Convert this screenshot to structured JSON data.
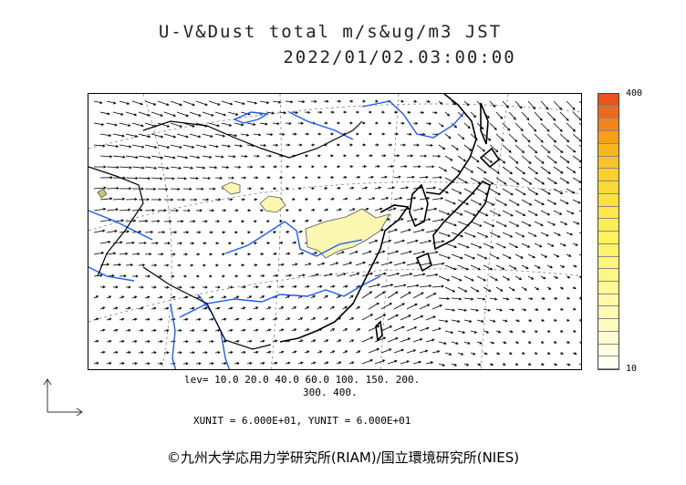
{
  "title": {
    "line1": "U-V&Dust total m/s&ug/m3 JST",
    "line2": "2022/01/02.03:00:00"
  },
  "legend": {
    "max_label": "400",
    "min_label": "10",
    "levels_line1": "lev= 10.0 20.0 40.0 60.0 100. 150. 200.",
    "levels_line2": "300. 400.",
    "units": "XUNIT = 6.000E+01, YUNIT = 6.000E+01",
    "segment_colors": [
      "#e8541c",
      "#ee6a1a",
      "#f28418",
      "#f6a016",
      "#f8b61c",
      "#fac524",
      "#fbd02e",
      "#fcd836",
      "#fce040",
      "#fde84a",
      "#fded54",
      "#fdf15e",
      "#fdf36a",
      "#fdf577",
      "#fdf686",
      "#fdf895",
      "#fef9a5",
      "#fefab4",
      "#fefbc2",
      "#fefcd0",
      "#fefde0",
      "#fffef0"
    ]
  },
  "colors": {
    "river": "#1a5cff",
    "coast": "#000000",
    "dust_fill": "#fbf6b0",
    "grid": "#666666"
  },
  "copyright": "©九州大学応用力学研究所(RIAM)/国立環境研究所(NIES)"
}
